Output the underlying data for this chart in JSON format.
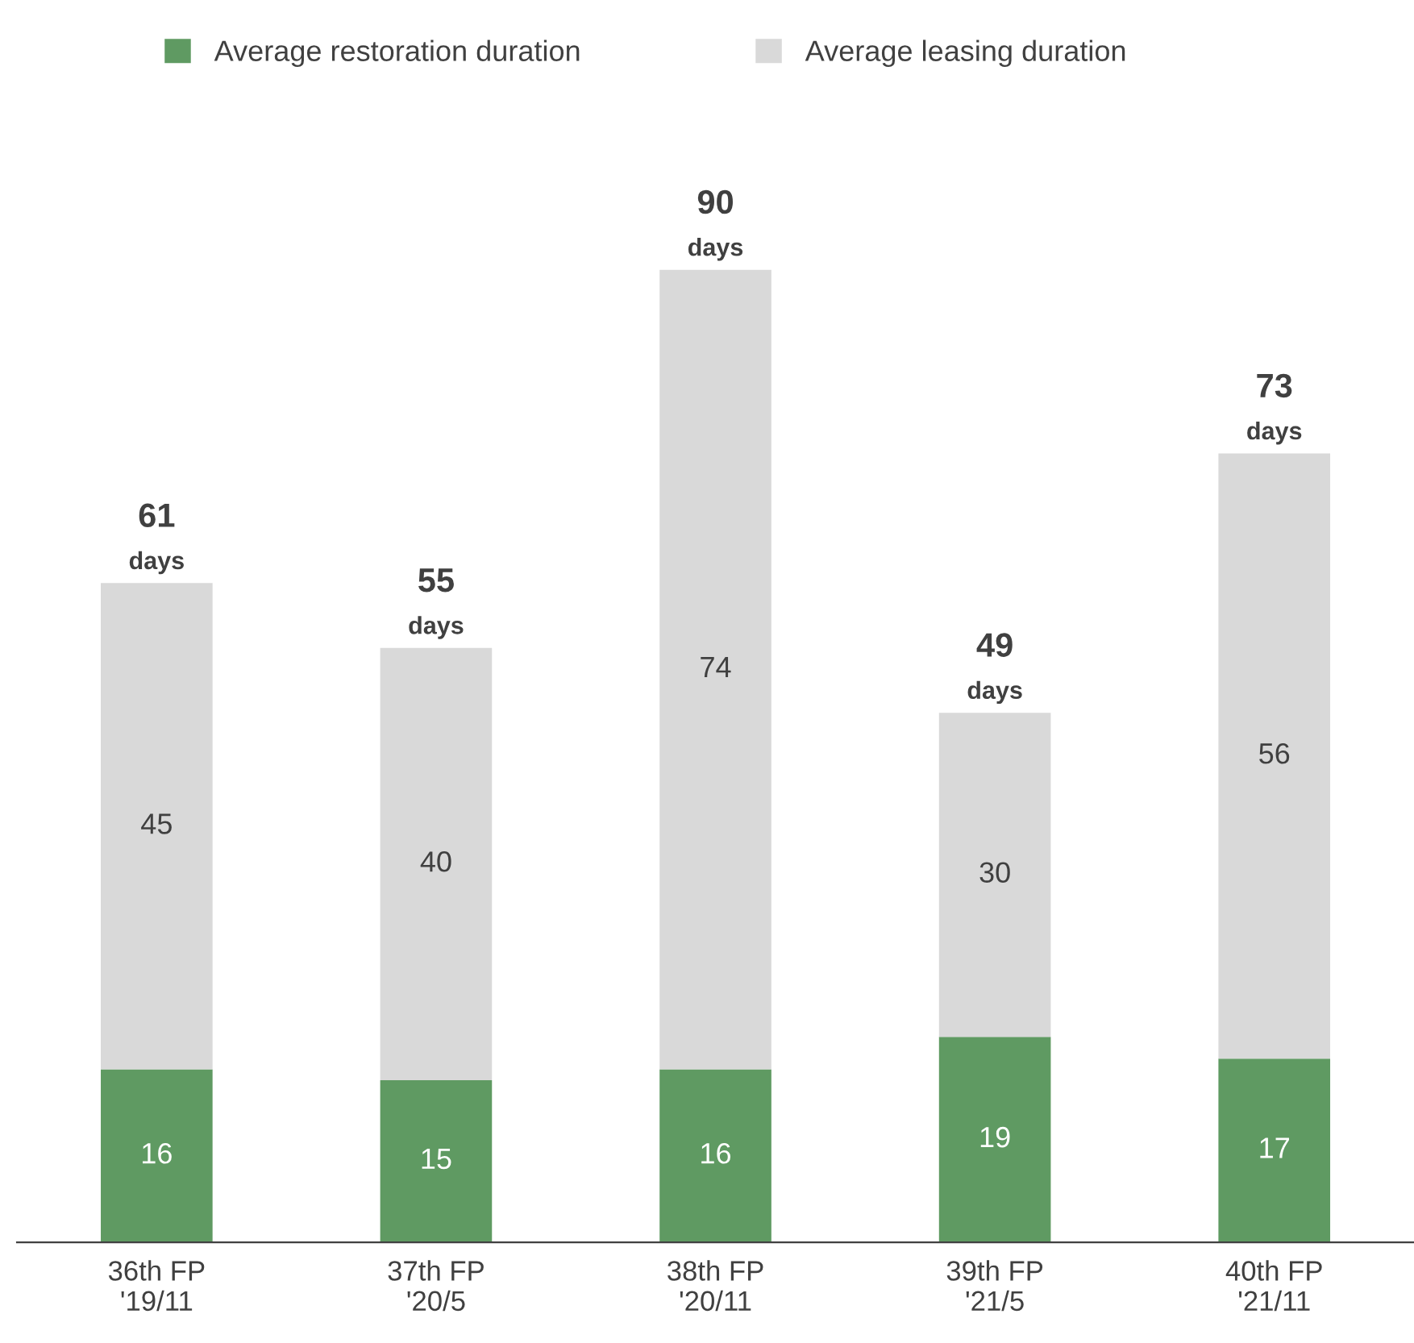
{
  "chart_data": {
    "type": "bar",
    "stacked": true,
    "data_labels": true,
    "legend": "top",
    "grid": false,
    "categories": [
      "36th FP\n'19/11",
      "37th FP\n'20/5",
      "38th FP\n'20/11",
      "39th FP\n'21/5",
      "40th FP\n'21/11"
    ],
    "series": [
      {
        "name": "Average restoration duration",
        "color": "#5f9a62",
        "values": [
          16,
          15,
          16,
          19,
          17
        ]
      },
      {
        "name": "Average leasing duration",
        "color": "#d9d9d9",
        "values": [
          45,
          40,
          74,
          30,
          56
        ]
      }
    ],
    "totals": [
      "61\ndays",
      "55\ndays",
      "90\ndays",
      "49\ndays",
      "73\ndays"
    ]
  }
}
